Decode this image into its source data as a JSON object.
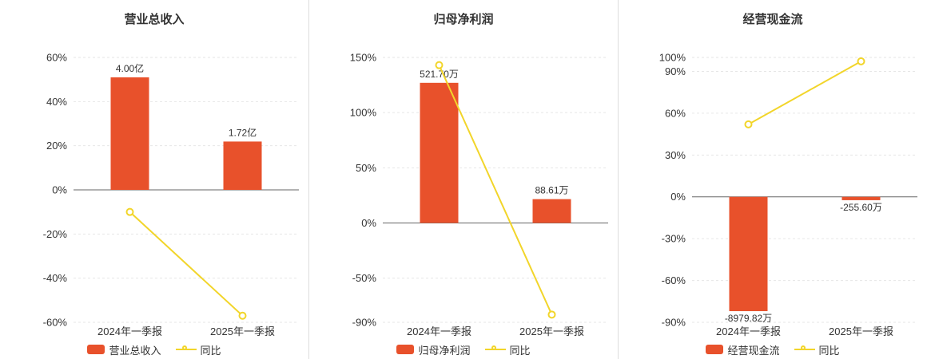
{
  "colors": {
    "bar": "#e8512b",
    "line": "#f2d52a",
    "axis": "#666666",
    "grid": "#e6e6e6",
    "text": "#333333",
    "divider": "#dddddd"
  },
  "chart_data": [
    {
      "type": "bar+line",
      "title": "营业总收入",
      "categories": [
        "2024年一季报",
        "2025年一季报"
      ],
      "bar_series": {
        "name": "营业总收入",
        "value_labels": [
          "4.00亿",
          "1.72亿"
        ],
        "plotted_pct": [
          51,
          21.9
        ]
      },
      "line_series": {
        "name": "同比",
        "values_pct": [
          -10,
          -57
        ]
      },
      "y_ticks_pct": [
        60,
        40,
        20,
        0,
        -20,
        -40,
        -60
      ],
      "ylim_pct": [
        -60,
        60
      ],
      "grid": true,
      "legend_position": "bottom"
    },
    {
      "type": "bar+line",
      "title": "归母净利润",
      "categories": [
        "2024年一季报",
        "2025年一季报"
      ],
      "bar_series": {
        "name": "归母净利润",
        "value_labels": [
          "521.70万",
          "88.61万"
        ],
        "plotted_pct": [
          127,
          21.6
        ]
      },
      "line_series": {
        "name": "同比",
        "values_pct": [
          143,
          -83
        ]
      },
      "y_ticks_pct": [
        150,
        100,
        50,
        0,
        -50,
        -90
      ],
      "ylim_pct": [
        -90,
        150
      ],
      "grid": true,
      "legend_position": "bottom"
    },
    {
      "type": "bar+line",
      "title": "经营现金流",
      "categories": [
        "2024年一季报",
        "2025年一季报"
      ],
      "bar_series": {
        "name": "经营现金流",
        "value_labels": [
          "-8979.82万",
          "-255.60万"
        ],
        "plotted_pct": [
          -82,
          -2.4
        ]
      },
      "line_series": {
        "name": "同比",
        "values_pct": [
          52,
          97.2
        ]
      },
      "y_ticks_pct": [
        100,
        90,
        60,
        30,
        0,
        -30,
        -60,
        -90
      ],
      "ylim_pct": [
        -90,
        100
      ],
      "grid": true,
      "legend_position": "bottom"
    }
  ]
}
